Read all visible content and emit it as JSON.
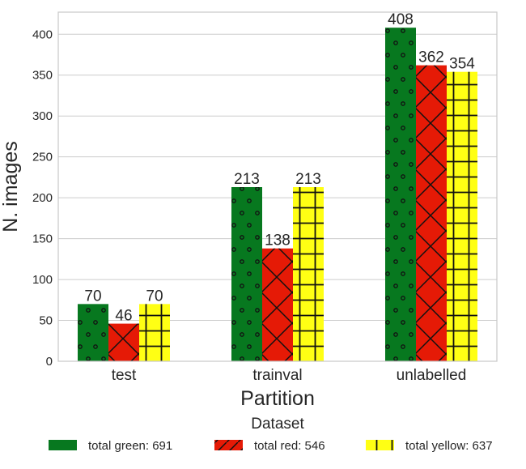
{
  "chart_data": {
    "type": "bar",
    "xlabel": "Partition",
    "ylabel": "N. images",
    "categories": [
      "test",
      "trainval",
      "unlabelled"
    ],
    "ylim": [
      0,
      427
    ],
    "yticks": [
      0,
      50,
      100,
      150,
      200,
      250,
      300,
      350,
      400
    ],
    "grid": true,
    "legend": {
      "title": "Dataset",
      "placement": "bottom"
    },
    "series": [
      {
        "name": "total green: 691",
        "values": [
          70,
          213,
          408
        ],
        "color": "#07781f",
        "pattern": "dots"
      },
      {
        "name": "total red: 546",
        "values": [
          46,
          138,
          362
        ],
        "color": "#e51a06",
        "pattern": "crosshatch-diagonal"
      },
      {
        "name": "total yellow: 637",
        "values": [
          70,
          213,
          354
        ],
        "color": "#ffff14",
        "pattern": "grid-plus"
      }
    ]
  }
}
